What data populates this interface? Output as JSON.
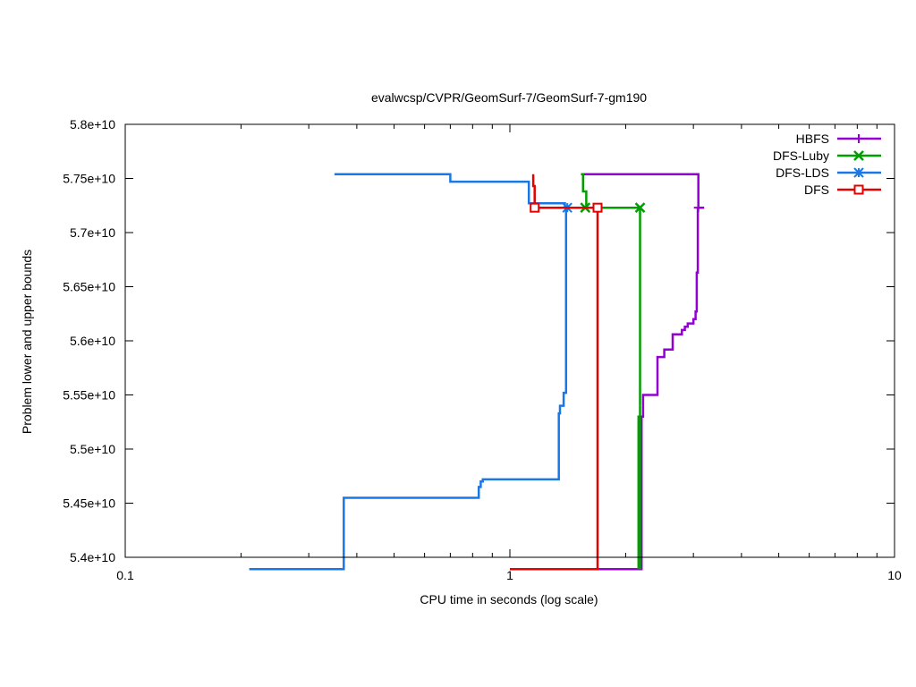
{
  "chart_data": {
    "type": "line",
    "title": "evalwcsp/CVPR/GeomSurf-7/GeomSurf-7-gm190",
    "xlabel": "CPU time in seconds (log scale)",
    "ylabel": "Problem lower and upper bounds",
    "x_scale": "log",
    "xlim": [
      0.1,
      10
    ],
    "ylim": [
      54000000000,
      58000000000
    ],
    "x_ticks": [
      {
        "value": 0.1,
        "label": "0.1"
      },
      {
        "value": 1,
        "label": "1"
      },
      {
        "value": 10,
        "label": "10"
      }
    ],
    "y_ticks": [
      {
        "value": 54000000000,
        "label": "5.4e+10"
      },
      {
        "value": 54500000000,
        "label": "5.45e+10"
      },
      {
        "value": 55000000000,
        "label": "5.5e+10"
      },
      {
        "value": 55500000000,
        "label": "5.55e+10"
      },
      {
        "value": 56000000000,
        "label": "5.6e+10"
      },
      {
        "value": 56500000000,
        "label": "5.65e+10"
      },
      {
        "value": 57000000000,
        "label": "5.7e+10"
      },
      {
        "value": 57500000000,
        "label": "5.75e+10"
      },
      {
        "value": 58000000000,
        "label": "5.8e+10"
      }
    ],
    "grid": false,
    "legend_position": "top-right",
    "series": [
      {
        "name": "HBFS",
        "color": "#9400d3",
        "marker": "plus",
        "lines": [
          [
            [
              1.54,
              57540000000
            ],
            [
              3.09,
              57540000000
            ],
            [
              3.09,
              57230000000
            ],
            [
              3.2,
              57230000000
            ]
          ],
          [
            [
              1.7,
              53890000000
            ],
            [
              2.2,
              53890000000
            ],
            [
              2.2,
              55300000000
            ],
            [
              2.22,
              55300000000
            ],
            [
              2.22,
              55500000000
            ],
            [
              2.42,
              55500000000
            ],
            [
              2.42,
              55850000000
            ],
            [
              2.52,
              55850000000
            ],
            [
              2.52,
              55920000000
            ],
            [
              2.65,
              55920000000
            ],
            [
              2.65,
              56060000000
            ],
            [
              2.8,
              56060000000
            ],
            [
              2.8,
              56100000000
            ],
            [
              2.85,
              56100000000
            ],
            [
              2.85,
              56130000000
            ],
            [
              2.9,
              56130000000
            ],
            [
              2.9,
              56160000000
            ],
            [
              3.0,
              56160000000
            ],
            [
              3.0,
              56200000000
            ],
            [
              3.04,
              56200000000
            ],
            [
              3.04,
              56270000000
            ],
            [
              3.06,
              56270000000
            ],
            [
              3.06,
              56630000000
            ],
            [
              3.08,
              56630000000
            ],
            [
              3.08,
              57230000000
            ]
          ]
        ],
        "markers": [
          [
            3.09,
            57230000000
          ]
        ]
      },
      {
        "name": "DFS-Luby",
        "color": "#009e00",
        "marker": "x",
        "lines": [
          [
            [
              1.53,
              57540000000
            ],
            [
              1.55,
              57540000000
            ],
            [
              1.55,
              57380000000
            ],
            [
              1.58,
              57380000000
            ],
            [
              1.58,
              57230000000
            ],
            [
              2.18,
              57230000000
            ],
            [
              2.18,
              55400000000
            ]
          ],
          [
            [
              2.18,
              55400000000
            ],
            [
              2.18,
              53890000000
            ]
          ],
          [
            [
              2.16,
              53890000000
            ],
            [
              2.16,
              55300000000
            ],
            [
              2.18,
              55300000000
            ]
          ]
        ],
        "markers": [
          [
            1.57,
            57230000000
          ],
          [
            2.18,
            57230000000
          ]
        ]
      },
      {
        "name": "DFS-LDS",
        "color": "#1a78e6",
        "marker": "asterisk",
        "lines": [
          [
            [
              0.35,
              57540000000
            ],
            [
              0.7,
              57540000000
            ],
            [
              0.7,
              57470000000
            ],
            [
              1.12,
              57470000000
            ],
            [
              1.12,
              57270000000
            ],
            [
              1.39,
              57270000000
            ],
            [
              1.39,
              57230000000
            ],
            [
              1.42,
              57230000000
            ]
          ],
          [
            [
              0.21,
              53890000000
            ],
            [
              0.37,
              53890000000
            ],
            [
              0.37,
              54550000000
            ],
            [
              0.83,
              54550000000
            ],
            [
              0.83,
              54650000000
            ],
            [
              0.84,
              54650000000
            ],
            [
              0.84,
              54700000000
            ],
            [
              0.85,
              54700000000
            ],
            [
              0.85,
              54720000000
            ],
            [
              1.34,
              54720000000
            ],
            [
              1.34,
              55330000000
            ],
            [
              1.35,
              55330000000
            ],
            [
              1.35,
              55400000000
            ],
            [
              1.38,
              55400000000
            ],
            [
              1.38,
              55520000000
            ],
            [
              1.4,
              55520000000
            ],
            [
              1.4,
              57230000000
            ]
          ]
        ],
        "markers": [
          [
            1.41,
            57230000000
          ]
        ]
      },
      {
        "name": "DFS",
        "color": "#e60000",
        "marker": "open-square",
        "lines": [
          [
            [
              1.15,
              57540000000
            ],
            [
              1.15,
              57430000000
            ],
            [
              1.16,
              57430000000
            ],
            [
              1.16,
              57230000000
            ],
            [
              1.69,
              57230000000
            ],
            [
              1.69,
              53890000000
            ],
            [
              1.0,
              53890000000
            ]
          ]
        ],
        "markers": [
          [
            1.16,
            57230000000
          ],
          [
            1.69,
            57230000000
          ]
        ]
      }
    ]
  }
}
